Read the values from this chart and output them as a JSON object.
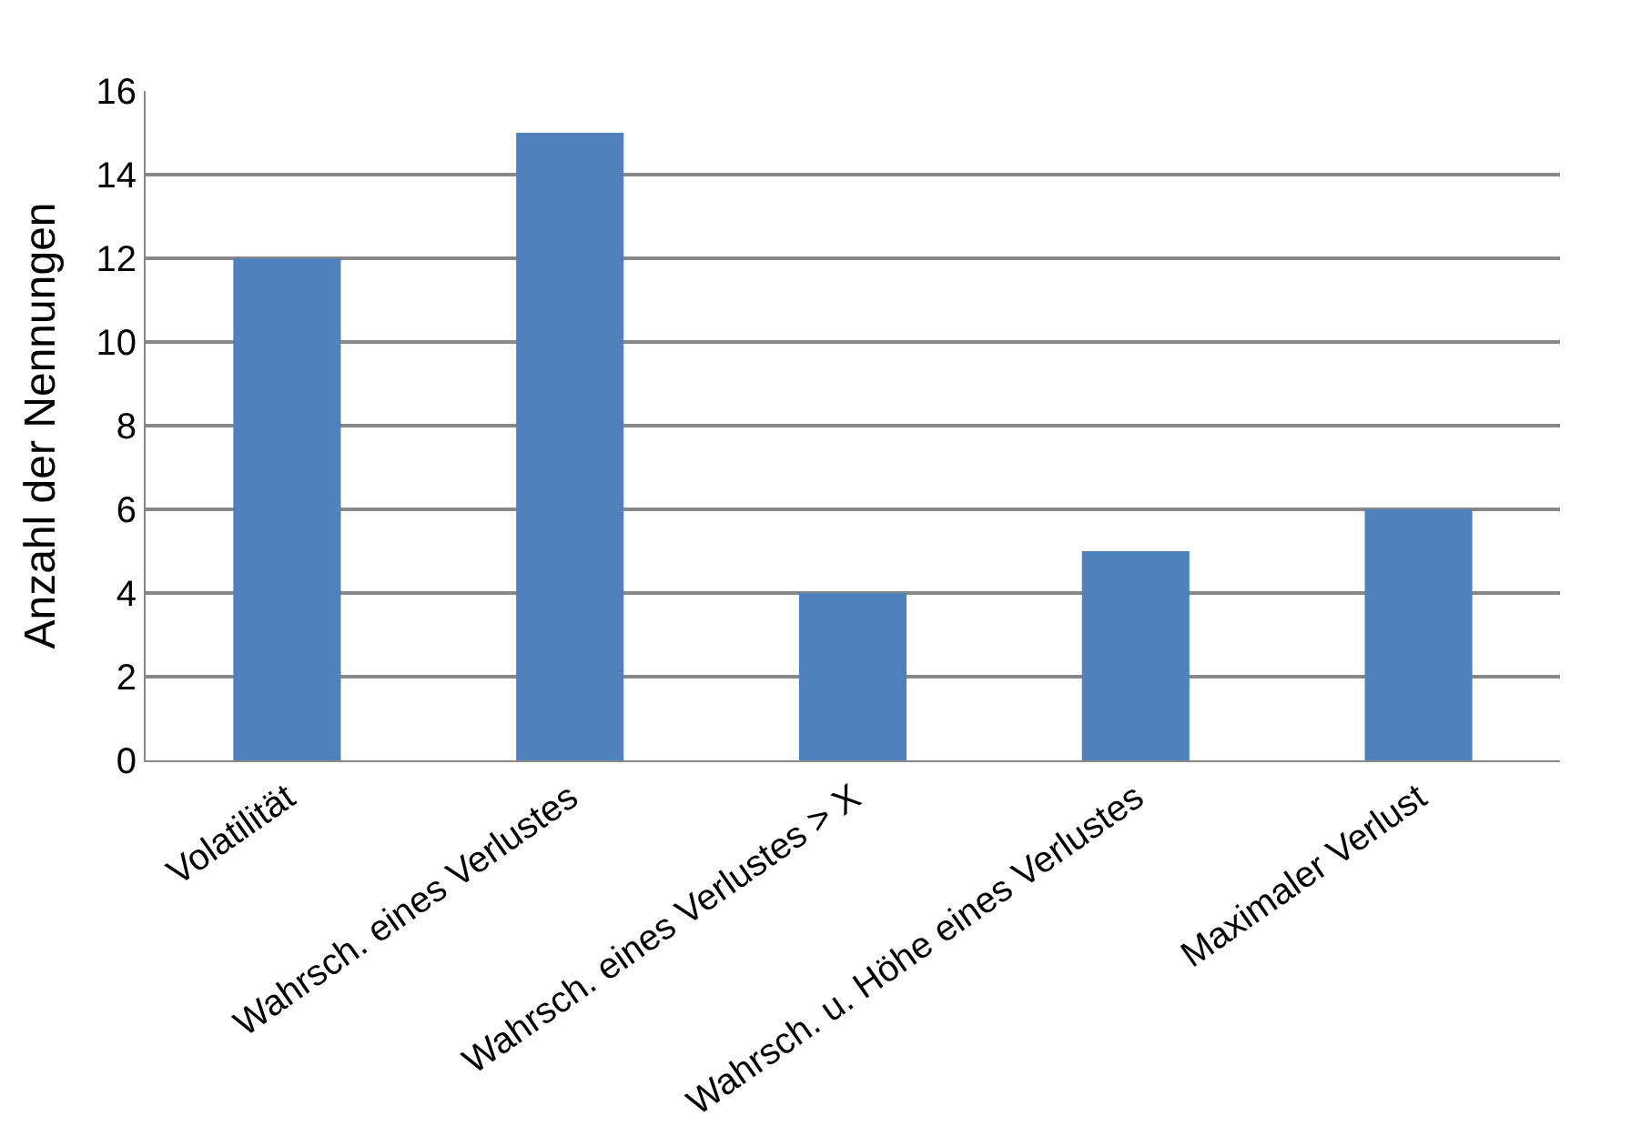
{
  "chart_data": {
    "type": "bar",
    "ylabel": "Anzahl der Nennungen",
    "categories": [
      "Volatilität",
      "Wahrsch. eines Verlustes",
      "Wahrsch. eines Verlustes > X",
      "Wahrsch. u. Höhe eines Verlustes",
      "Maximaler Verlust"
    ],
    "values": [
      12,
      15,
      4,
      5,
      6
    ],
    "color": "#4f81bd",
    "ylim": [
      0,
      16
    ],
    "yticks": [
      0,
      2,
      4,
      6,
      8,
      10,
      12,
      14,
      16
    ],
    "grid": "y"
  }
}
